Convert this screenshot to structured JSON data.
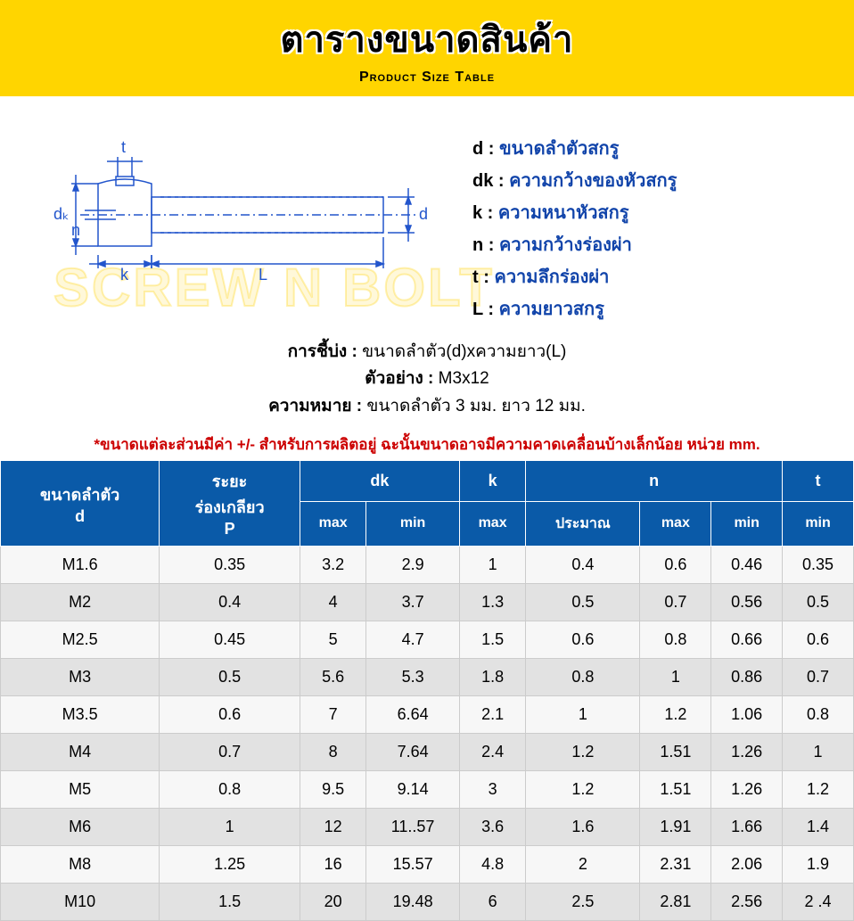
{
  "header": {
    "title_th": "ตารางขนาดสินค้า",
    "title_en": "Product Size Table"
  },
  "watermark": "SCREW N BOLT",
  "diagram": {
    "labels": {
      "t": "t",
      "dk": "dₖ",
      "n": "n",
      "k": "k",
      "L": "L",
      "d": "d"
    },
    "stroke": "#2255cc",
    "text_color": "#2255cc"
  },
  "legend": [
    {
      "sym": "d",
      "desc": "ขนาดลำตัวสกรู"
    },
    {
      "sym": "dk",
      "desc": "ความกว้างของหัวสกรู"
    },
    {
      "sym": "k",
      "desc": "ความหนาหัวสกรู"
    },
    {
      "sym": "n",
      "desc": "ความกว้างร่องผ่า"
    },
    {
      "sym": "t",
      "desc": "ความลึกร่องผ่า"
    },
    {
      "sym": "L",
      "desc": "ความยาวสกรู"
    }
  ],
  "explain": {
    "l1_label": "การชี้บ่ง :",
    "l1_val": "ขนาดลำตัว(d)xความยาว(L)",
    "l2_label": "ตัวอย่าง :",
    "l2_val": "M3x12",
    "l3_label": "ความหมาย :",
    "l3_val": "ขนาดลำตัว 3 มม. ยาว 12 มม."
  },
  "note": "*ขนาดแต่ละส่วนมีค่า +/- สำหรับการผลิตอยู่ ฉะนั้นขนาดอาจมีความคาดเคลื่อนบ้างเล็กน้อย หน่วย mm.",
  "table": {
    "head_top": [
      {
        "label": "ขนาดลำตัว\nd",
        "colspan": 1,
        "rowspan": 2
      },
      {
        "label": "ระยะ\nร่องเกลียว\nP",
        "colspan": 1,
        "rowspan": 2
      },
      {
        "label": "dk",
        "colspan": 2,
        "rowspan": 1
      },
      {
        "label": "k",
        "colspan": 1,
        "rowspan": 1
      },
      {
        "label": "n",
        "colspan": 3,
        "rowspan": 1
      },
      {
        "label": "t",
        "colspan": 1,
        "rowspan": 1
      }
    ],
    "head_sub": [
      "max",
      "min",
      "max",
      "ประมาณ",
      "max",
      "min",
      "min"
    ],
    "rows": [
      [
        "M1.6",
        "0.35",
        "3.2",
        "2.9",
        "1",
        "0.4",
        "0.6",
        "0.46",
        "0.35"
      ],
      [
        "M2",
        "0.4",
        "4",
        "3.7",
        "1.3",
        "0.5",
        "0.7",
        "0.56",
        "0.5"
      ],
      [
        "M2.5",
        "0.45",
        "5",
        "4.7",
        "1.5",
        "0.6",
        "0.8",
        "0.66",
        "0.6"
      ],
      [
        "M3",
        "0.5",
        "5.6",
        "5.3",
        "1.8",
        "0.8",
        "1",
        "0.86",
        "0.7"
      ],
      [
        "M3.5",
        "0.6",
        "7",
        "6.64",
        "2.1",
        "1",
        "1.2",
        "1.06",
        "0.8"
      ],
      [
        "M4",
        "0.7",
        "8",
        "7.64",
        "2.4",
        "1.2",
        "1.51",
        "1.26",
        "1"
      ],
      [
        "M5",
        "0.8",
        "9.5",
        "9.14",
        "3",
        "1.2",
        "1.51",
        "1.26",
        "1.2"
      ],
      [
        "M6",
        "1",
        "12",
        "11..57",
        "3.6",
        "1.6",
        "1.91",
        "1.66",
        "1.4"
      ],
      [
        "M8",
        "1.25",
        "16",
        "15.57",
        "4.8",
        "2",
        "2.31",
        "2.06",
        "1.9"
      ],
      [
        "M10",
        "1.5",
        "20",
        "19.48",
        "6",
        "2.5",
        "2.81",
        "2.56",
        "2 .4"
      ]
    ],
    "header_bg": "#0a5aa8",
    "header_fg": "#ffffff",
    "row_odd_bg": "#f7f7f7",
    "row_even_bg": "#e2e2e2"
  }
}
